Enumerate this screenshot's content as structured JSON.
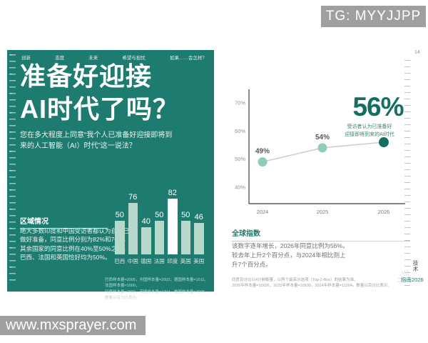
{
  "watermarks": {
    "telegram": "TG: MYYJJPP",
    "site": "www.mxsprayer.com"
  },
  "left_panel": {
    "nav_items": [
      "创新",
      "态度",
      "未来",
      "希望与担忧",
      "如果……会怎样？"
    ],
    "title_line1": "准备好迎接",
    "title_line2": "AI时代了吗？",
    "question": "您在多大程度上同意“我个人已准备好迎接即将到\n来的人工智能（AI）时代”这一说法？",
    "region_heading": "区域情况",
    "region_body": "绝大多数印度和中国受访者都认为自己已\n做好准备，同意比例分别为82%和76%。\n其余国家的同意比例在40%至50%之间，\n巴西、法国和英国恰好均为50%。",
    "footnote": "巴西样本量=2005，中国样本量=2002，德国样本量=1011，法国样本量=1000，\n印度样本量=2002，英国样本量=1004，美国样本量=2005。数量以百分比表示。"
  },
  "right_panel": {
    "page_number": "14",
    "highlight_value": "56%",
    "highlight_caption": "受访者认为已准备好\n迎接即将到来的AI时代",
    "global_heading": "全球指数",
    "global_body": "该数字逐年增长，2026年同意比例为56%，\n较去年上升2个百分点，与2024年相比则上\n升7个百分点。",
    "footnote": "同意百分比以4分制衡量，以两个最高分选项（Top-2-Box）的结果为准。\n2026年样本量=10026，2025年样本量=10100，2024年样本量=11264。数量以百分比表示。",
    "side_label": "技术",
    "brand_label": "指南2026"
  },
  "colors": {
    "panel_teal": "#1e7b6f",
    "bar_mint": "#b7d9cb",
    "bar_highlight": "#ffffff",
    "accent_dark_teal": "#156e5f",
    "dot_light": "#8fcdb9",
    "line_gray": "#c9cfcc",
    "watermark_gray": "#9f9f9f"
  },
  "chart_data": [
    {
      "type": "bar",
      "context": "left-panel-regional-agreement",
      "title": "区域情况",
      "categories": [
        "巴西",
        "中国",
        "德国",
        "法国",
        "印度",
        "英国",
        "美国"
      ],
      "values": [
        50,
        76,
        40,
        50,
        82,
        50,
        46
      ],
      "unit": "%",
      "highlight_category": "印度",
      "bar_color": "#b7d9cb",
      "highlight_bar_color": "#ffffff",
      "value_labels_shown": true,
      "axis_shown": false
    },
    {
      "type": "line",
      "context": "right-panel-global-trend",
      "x": [
        "2024",
        "2025",
        "2026"
      ],
      "values": [
        49,
        54,
        56
      ],
      "point_labels": [
        "49%",
        "54%",
        ""
      ],
      "highlight_point": {
        "x": "2026",
        "value": 56,
        "big_label": "56%",
        "caption": "受访者认为已准备好迎接即将到来的AI时代"
      },
      "yticks": [
        "70%",
        "60%",
        "50%",
        "40%"
      ],
      "ytick_values": [
        70,
        60,
        50,
        40
      ],
      "ylim": [
        33,
        75
      ],
      "grid": false,
      "legend": "none",
      "line_color": "#c9cfcc",
      "point_color": "#8fcdb9",
      "highlight_point_color": "#156e5f"
    }
  ]
}
